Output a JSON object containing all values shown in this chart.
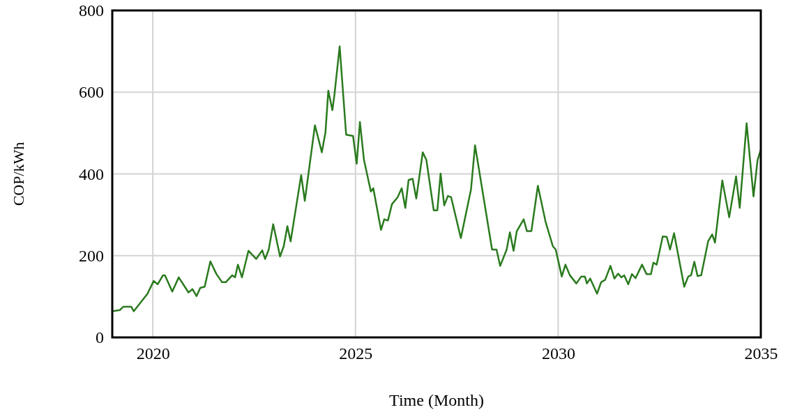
{
  "chart_data": {
    "type": "line",
    "xlabel": "Time (Month)",
    "ylabel": "COP/kWh",
    "xlim": [
      2019,
      2035
    ],
    "xticks": [
      2020,
      2025,
      2030,
      2035
    ],
    "ylim": [
      0,
      800
    ],
    "yticks": [
      0,
      200,
      400,
      600,
      800
    ],
    "grid": true,
    "line_style": "solid",
    "series": [
      {
        "color": "#2a7a1e",
        "x": [
          2019.0,
          2019.19,
          2019.27,
          2019.47,
          2019.53,
          2019.87,
          2020.02,
          2020.12,
          2020.25,
          2020.3,
          2020.48,
          2020.64,
          2020.88,
          2020.98,
          2021.08,
          2021.17,
          2021.28,
          2021.42,
          2021.57,
          2021.71,
          2021.8,
          2021.96,
          2022.03,
          2022.1,
          2022.2,
          2022.36,
          2022.55,
          2022.7,
          2022.77,
          2022.86,
          2022.97,
          2023.14,
          2023.23,
          2023.32,
          2023.4,
          2023.66,
          2023.75,
          2024.0,
          2024.17,
          2024.26,
          2024.33,
          2024.43,
          2024.48,
          2024.61,
          2024.77,
          2024.94,
          2025.03,
          2025.11,
          2025.21,
          2025.38,
          2025.44,
          2025.63,
          2025.71,
          2025.8,
          2025.9,
          2026.04,
          2026.14,
          2026.23,
          2026.31,
          2026.41,
          2026.5,
          2026.66,
          2026.75,
          2026.93,
          2027.02,
          2027.1,
          2027.19,
          2027.28,
          2027.36,
          2027.6,
          2027.85,
          2027.95,
          2028.37,
          2028.48,
          2028.57,
          2028.73,
          2028.81,
          2028.9,
          2028.98,
          2029.15,
          2029.23,
          2029.34,
          2029.5,
          2029.69,
          2029.87,
          2029.94,
          2030.09,
          2030.18,
          2030.29,
          2030.45,
          2030.57,
          2030.66,
          2030.71,
          2030.79,
          2030.96,
          2031.06,
          2031.16,
          2031.29,
          2031.39,
          2031.48,
          2031.56,
          2031.63,
          2031.73,
          2031.82,
          2031.91,
          2032.07,
          2032.18,
          2032.29,
          2032.35,
          2032.43,
          2032.58,
          2032.68,
          2032.76,
          2032.86,
          2033.11,
          2033.21,
          2033.28,
          2033.36,
          2033.44,
          2033.53,
          2033.7,
          2033.8,
          2033.87,
          2034.05,
          2034.22,
          2034.39,
          2034.48,
          2034.65,
          2034.82,
          2034.92,
          2035.0
        ],
        "values": [
          64,
          67,
          75,
          75,
          64,
          107,
          138,
          130,
          152,
          152,
          112,
          147,
          110,
          118,
          101,
          121,
          124,
          186,
          155,
          135,
          135,
          152,
          147,
          178,
          147,
          212,
          192,
          213,
          192,
          215,
          277,
          198,
          223,
          272,
          235,
          397,
          334,
          519,
          453,
          502,
          604,
          556,
          593,
          712,
          496,
          493,
          425,
          527,
          434,
          357,
          365,
          263,
          289,
          286,
          326,
          343,
          365,
          317,
          385,
          388,
          340,
          453,
          434,
          311,
          311,
          401,
          323,
          346,
          343,
          243,
          362,
          470,
          215,
          215,
          175,
          215,
          257,
          212,
          260,
          289,
          260,
          260,
          371,
          283,
          223,
          215,
          149,
          178,
          152,
          132,
          149,
          149,
          132,
          144,
          107,
          135,
          141,
          175,
          144,
          156,
          147,
          152,
          130,
          155,
          145,
          178,
          155,
          155,
          183,
          178,
          247,
          246,
          215,
          255,
          124,
          149,
          152,
          185,
          150,
          152,
          235,
          252,
          232,
          384,
          294,
          394,
          317,
          524,
          345,
          434,
          459
        ]
      }
    ]
  }
}
